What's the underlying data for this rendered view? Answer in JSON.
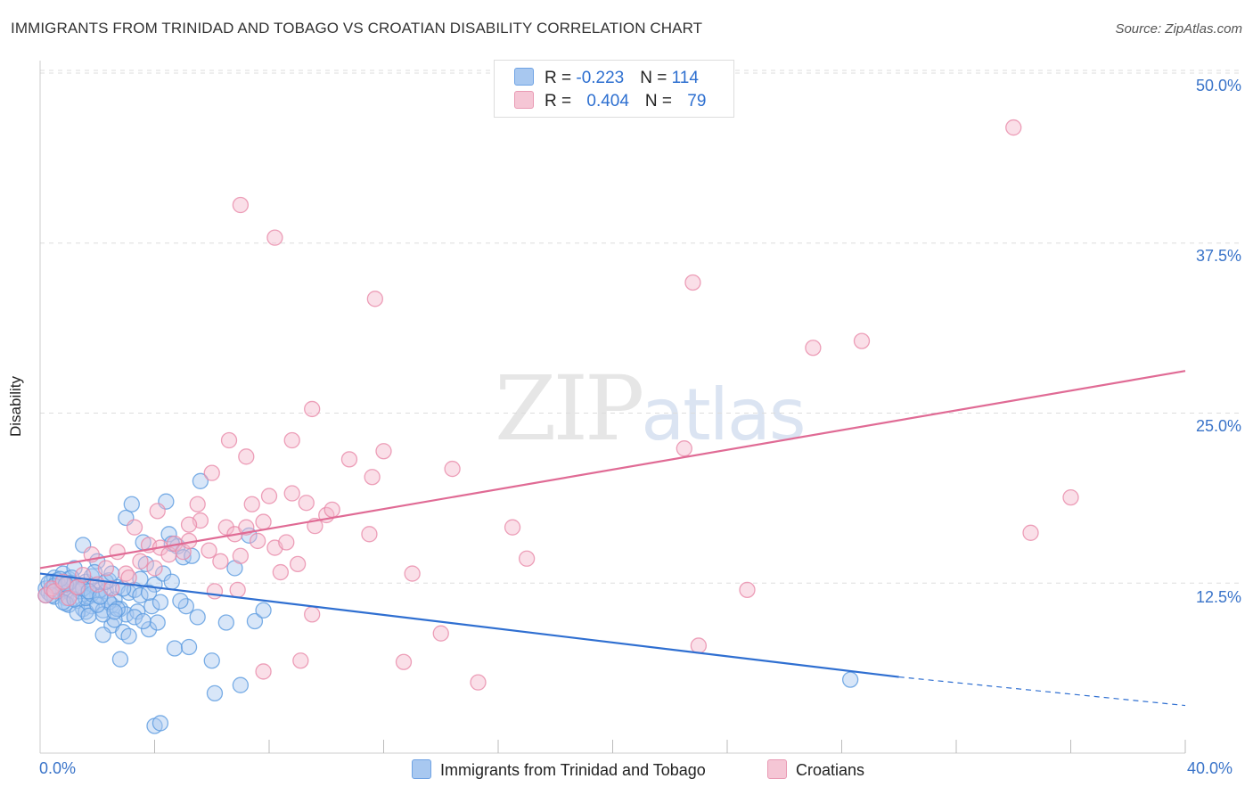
{
  "header": {
    "title": "IMMIGRANTS FROM TRINIDAD AND TOBAGO VS CROATIAN DISABILITY CORRELATION CHART",
    "source": "Source: ZipAtlas.com"
  },
  "watermark": {
    "zip": "ZIP",
    "atlas": "atlas"
  },
  "legend": {
    "rows": [
      {
        "r_label": "R = ",
        "r_value": "-0.223",
        "n_label": "N = ",
        "n_value": "114",
        "color": "#a8c8f0"
      },
      {
        "r_label": "R = ",
        "r_value": "0.404",
        "n_label": "N = ",
        "n_value": "79",
        "color": "#f5b8cb"
      }
    ]
  },
  "bottom_legend": [
    {
      "label": "Immigrants from Trinidad and Tobago",
      "color": "#a8c8f0"
    },
    {
      "label": "Croatians",
      "color": "#f5b8cb"
    }
  ],
  "axes": {
    "ylabel": "Disability",
    "x_min_label": "0.0%",
    "x_max_label": "40.0%",
    "y_ticks": [
      "12.5%",
      "25.0%",
      "37.5%",
      "50.0%"
    ]
  },
  "chart_data": {
    "type": "scatter",
    "xlabel": "",
    "ylabel": "Disability",
    "xlim": [
      0,
      40
    ],
    "ylim": [
      0,
      50
    ],
    "y_ticks": [
      12.5,
      25.0,
      37.5,
      50.0
    ],
    "grid": true,
    "series": [
      {
        "name": "Immigrants from Trinidad and Tobago",
        "color": "#5b9be0",
        "fill": "#a8c8f0",
        "trend": {
          "x": [
            0,
            30
          ],
          "y": [
            13.2,
            5.6
          ],
          "dashed_to": [
            40,
            3.5
          ]
        },
        "points": [
          [
            0.2,
            12.1
          ],
          [
            0.3,
            11.8
          ],
          [
            0.4,
            12.6
          ],
          [
            0.5,
            11.5
          ],
          [
            0.5,
            12.9
          ],
          [
            0.6,
            12.2
          ],
          [
            0.7,
            11.9
          ],
          [
            0.8,
            13.2
          ],
          [
            0.8,
            12.0
          ],
          [
            0.9,
            11.4
          ],
          [
            1.0,
            12.8
          ],
          [
            1.0,
            10.9
          ],
          [
            1.1,
            11.7
          ],
          [
            1.2,
            12.4
          ],
          [
            1.2,
            13.6
          ],
          [
            1.3,
            11.2
          ],
          [
            1.4,
            12.1
          ],
          [
            1.5,
            10.6
          ],
          [
            1.5,
            15.3
          ],
          [
            1.6,
            12.6
          ],
          [
            1.7,
            11.5
          ],
          [
            1.8,
            10.8
          ],
          [
            1.8,
            13.0
          ],
          [
            1.9,
            12.3
          ],
          [
            2.0,
            11.6
          ],
          [
            2.0,
            14.1
          ],
          [
            2.1,
            12.0
          ],
          [
            2.2,
            10.5
          ],
          [
            2.3,
            11.9
          ],
          [
            2.4,
            12.7
          ],
          [
            2.5,
            10.9
          ],
          [
            2.5,
            9.4
          ],
          [
            2.6,
            11.3
          ],
          [
            2.7,
            12.2
          ],
          [
            2.8,
            10.6
          ],
          [
            2.9,
            8.9
          ],
          [
            3.0,
            10.2
          ],
          [
            3.0,
            17.3
          ],
          [
            3.1,
            11.8
          ],
          [
            3.2,
            18.3
          ],
          [
            3.3,
            12.0
          ],
          [
            3.4,
            10.4
          ],
          [
            3.5,
            11.6
          ],
          [
            3.6,
            15.5
          ],
          [
            3.7,
            13.9
          ],
          [
            3.8,
            9.1
          ],
          [
            3.9,
            10.8
          ],
          [
            4.0,
            12.4
          ],
          [
            4.1,
            9.6
          ],
          [
            4.2,
            11.1
          ],
          [
            4.3,
            13.2
          ],
          [
            4.4,
            18.5
          ],
          [
            4.5,
            16.1
          ],
          [
            4.6,
            12.6
          ],
          [
            4.7,
            7.7
          ],
          [
            4.8,
            15.2
          ],
          [
            5.0,
            14.4
          ],
          [
            5.2,
            7.8
          ],
          [
            5.3,
            14.5
          ],
          [
            5.5,
            10.0
          ],
          [
            5.6,
            20.0
          ],
          [
            6.0,
            6.8
          ],
          [
            6.1,
            4.4
          ],
          [
            6.5,
            9.6
          ],
          [
            6.8,
            13.6
          ],
          [
            7.0,
            5.0
          ],
          [
            7.3,
            16.0
          ],
          [
            7.5,
            9.7
          ],
          [
            7.8,
            10.5
          ],
          [
            4.0,
            2.0
          ],
          [
            4.2,
            2.2
          ],
          [
            1.6,
            10.4
          ],
          [
            2.2,
            8.7
          ],
          [
            2.8,
            6.9
          ],
          [
            0.9,
            11.0
          ],
          [
            1.3,
            10.3
          ],
          [
            1.7,
            10.1
          ],
          [
            2.6,
            9.8
          ],
          [
            3.3,
            10.0
          ],
          [
            3.6,
            9.7
          ],
          [
            0.6,
            12.7
          ],
          [
            1.1,
            12.9
          ],
          [
            1.9,
            13.3
          ],
          [
            2.4,
            11.1
          ],
          [
            3.8,
            11.8
          ],
          [
            4.6,
            15.4
          ],
          [
            5.1,
            10.8
          ],
          [
            0.3,
            12.5
          ],
          [
            0.8,
            11.1
          ],
          [
            1.4,
            11.9
          ],
          [
            2.9,
            12.1
          ],
          [
            3.5,
            12.8
          ],
          [
            4.9,
            11.2
          ],
          [
            0.4,
            11.6
          ],
          [
            1.0,
            12.5
          ],
          [
            1.6,
            11.4
          ],
          [
            2.2,
            10.2
          ],
          [
            2.7,
            10.6
          ],
          [
            3.1,
            8.6
          ],
          [
            28.3,
            5.4
          ],
          [
            0.5,
            12.3
          ],
          [
            0.7,
            12.8
          ],
          [
            1.2,
            11.3
          ],
          [
            1.5,
            12.1
          ],
          [
            1.8,
            11.7
          ],
          [
            2.0,
            10.9
          ],
          [
            2.3,
            12.6
          ],
          [
            2.5,
            13.2
          ],
          [
            0.2,
            11.6
          ],
          [
            0.9,
            12.4
          ],
          [
            1.3,
            12.2
          ],
          [
            1.7,
            11.9
          ],
          [
            2.1,
            11.5
          ],
          [
            2.6,
            10.4
          ]
        ]
      },
      {
        "name": "Croatians",
        "color": "#e98aa9",
        "fill": "#f5b8cb",
        "trend": {
          "x": [
            0,
            40
          ],
          "y": [
            13.6,
            28.1
          ]
        },
        "points": [
          [
            0.2,
            11.6
          ],
          [
            0.4,
            12.1
          ],
          [
            0.5,
            11.9
          ],
          [
            0.8,
            12.6
          ],
          [
            1.0,
            11.4
          ],
          [
            1.3,
            12.2
          ],
          [
            1.5,
            13.1
          ],
          [
            1.8,
            14.6
          ],
          [
            2.0,
            12.4
          ],
          [
            2.3,
            13.6
          ],
          [
            2.5,
            12.1
          ],
          [
            2.7,
            14.8
          ],
          [
            3.0,
            13.2
          ],
          [
            3.3,
            16.6
          ],
          [
            3.5,
            14.1
          ],
          [
            3.8,
            15.3
          ],
          [
            4.0,
            13.6
          ],
          [
            4.2,
            15.1
          ],
          [
            4.5,
            14.6
          ],
          [
            4.7,
            15.4
          ],
          [
            5.0,
            14.8
          ],
          [
            5.2,
            15.6
          ],
          [
            5.5,
            18.3
          ],
          [
            5.6,
            17.1
          ],
          [
            5.9,
            14.9
          ],
          [
            6.1,
            11.9
          ],
          [
            6.3,
            14.1
          ],
          [
            6.5,
            16.6
          ],
          [
            6.8,
            16.1
          ],
          [
            6.9,
            12.0
          ],
          [
            7.0,
            14.5
          ],
          [
            7.2,
            16.6
          ],
          [
            7.4,
            18.3
          ],
          [
            7.6,
            15.6
          ],
          [
            7.8,
            17.0
          ],
          [
            8.0,
            18.9
          ],
          [
            8.2,
            15.1
          ],
          [
            8.4,
            13.3
          ],
          [
            8.6,
            15.5
          ],
          [
            8.8,
            19.1
          ],
          [
            9.0,
            13.9
          ],
          [
            9.5,
            10.2
          ],
          [
            6.6,
            23.0
          ],
          [
            7.2,
            21.8
          ],
          [
            8.8,
            23.0
          ],
          [
            9.3,
            18.4
          ],
          [
            9.5,
            25.3
          ],
          [
            9.6,
            16.7
          ],
          [
            10.0,
            17.5
          ],
          [
            10.2,
            17.9
          ],
          [
            10.8,
            21.6
          ],
          [
            11.5,
            16.1
          ],
          [
            11.6,
            20.3
          ],
          [
            11.7,
            33.4
          ],
          [
            12.0,
            22.2
          ],
          [
            13.0,
            13.2
          ],
          [
            14.0,
            8.8
          ],
          [
            14.4,
            20.9
          ],
          [
            15.3,
            5.2
          ],
          [
            16.5,
            16.6
          ],
          [
            17.0,
            14.3
          ],
          [
            22.5,
            22.4
          ],
          [
            23.0,
            7.9
          ],
          [
            24.7,
            12.0
          ],
          [
            27.0,
            29.8
          ],
          [
            28.7,
            30.3
          ],
          [
            34.6,
            16.2
          ],
          [
            36.0,
            18.8
          ],
          [
            34.0,
            46.0
          ],
          [
            7.0,
            40.3
          ],
          [
            8.2,
            37.9
          ],
          [
            22.8,
            34.6
          ],
          [
            6.0,
            20.6
          ],
          [
            7.8,
            6.0
          ],
          [
            9.1,
            6.8
          ],
          [
            12.7,
            6.7
          ],
          [
            4.1,
            17.8
          ],
          [
            5.2,
            16.8
          ],
          [
            3.1,
            12.9
          ]
        ]
      }
    ]
  }
}
